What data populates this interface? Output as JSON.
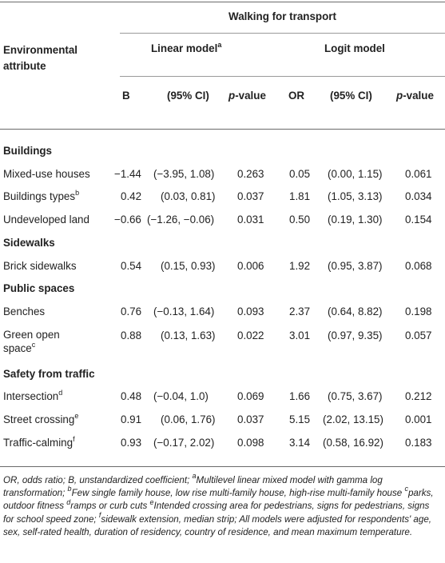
{
  "header": {
    "group_title": "Walking for transport",
    "attr_label_line1": "Environmental",
    "attr_label_line2": "attribute",
    "linear_title": "Linear model",
    "linear_sup": "a",
    "logit_title": "Logit model",
    "col_b": "B",
    "col_ci": "(95% CI)",
    "col_p": "p",
    "col_p_suffix": "-value",
    "col_or": "OR"
  },
  "sections": [
    {
      "title": "Buildings",
      "rows": [
        {
          "label": "Mixed-use houses",
          "sup": "",
          "b": "−1.44",
          "b_ci": "(−3.95, 1.08)",
          "b_p": "0.263",
          "or": "0.05",
          "or_ci": "(0.00, 1.15)",
          "or_p": "0.061"
        },
        {
          "label": "Buildings types",
          "sup": "b",
          "b": "0.42",
          "b_ci": "(0.03, 0.81)",
          "b_p": "0.037",
          "or": "1.81",
          "or_ci": "(1.05, 3.13)",
          "or_p": "0.034"
        },
        {
          "label": "Undeveloped land",
          "sup": "",
          "b": "−0.66",
          "b_ci": "(−1.26, −0.06)",
          "b_p": "0.031",
          "or": "0.50",
          "or_ci": "(0.19, 1.30)",
          "or_p": "0.154"
        }
      ]
    },
    {
      "title": "Sidewalks",
      "rows": [
        {
          "label": "Brick sidewalks",
          "sup": "",
          "b": "0.54",
          "b_ci": "(0.15, 0.93)",
          "b_p": "0.006",
          "or": "1.92",
          "or_ci": "(0.95, 3.87)",
          "or_p": "0.068"
        }
      ]
    },
    {
      "title": "Public spaces",
      "rows": [
        {
          "label": "Benches",
          "sup": "",
          "b": "0.76",
          "b_ci": "(−0.13, 1.64)",
          "b_p": "0.093",
          "or": "2.37",
          "or_ci": "(0.64, 8.82)",
          "or_p": "0.198"
        },
        {
          "label": "Green open",
          "label2": "space",
          "sup": "c",
          "b": "0.88",
          "b_ci": "(0.13, 1.63)",
          "b_p": "0.022",
          "or": "3.01",
          "or_ci": "(0.97, 9.35)",
          "or_p": "0.057"
        }
      ]
    },
    {
      "title": "Safety from traffic",
      "rows": [
        {
          "label": "Intersection",
          "sup": "d",
          "b": "0.48",
          "b_ci": "(−0.04, 1.0)",
          "b_p": "0.069",
          "or": "1.66",
          "or_ci": "(0.75, 3.67)",
          "or_p": "0.212"
        },
        {
          "label": "Street crossing",
          "sup": "e",
          "b": "0.91",
          "b_ci": "(0.06, 1.76)",
          "b_p": "0.037",
          "or": "5.15",
          "or_ci": "(2.02, 13.15)",
          "or_p": "0.001"
        },
        {
          "label": "Traffic-calming",
          "sup": "f",
          "b": "0.93",
          "b_ci": "(−0.17, 2.02)",
          "b_p": "0.098",
          "or": "3.14",
          "or_ci": "(0.58, 16.92)",
          "or_p": "0.183"
        }
      ]
    }
  ],
  "footnote": [
    {
      "t": "OR, odds ratio; B, unstandardized coefficient; "
    },
    {
      "s": "a"
    },
    {
      "t": "Multilevel linear mixed model with gamma log transformation; "
    },
    {
      "s": "b"
    },
    {
      "t": "Few single family house, low rise multi-family house, high-rise multi-family house "
    },
    {
      "s": "c"
    },
    {
      "t": "parks, outdoor fitness "
    },
    {
      "s": "d"
    },
    {
      "t": "ramps or curb cuts "
    },
    {
      "s": "e"
    },
    {
      "t": "Intended crossing area for pedestrians, signs for pedestrians, signs for school speed zone; "
    },
    {
      "s": "f"
    },
    {
      "t": "sidewalk extension, median strip; All models were adjusted for respondents' age, sex, self-rated health, duration of residency, country of residence, and mean maximum temperature."
    }
  ]
}
